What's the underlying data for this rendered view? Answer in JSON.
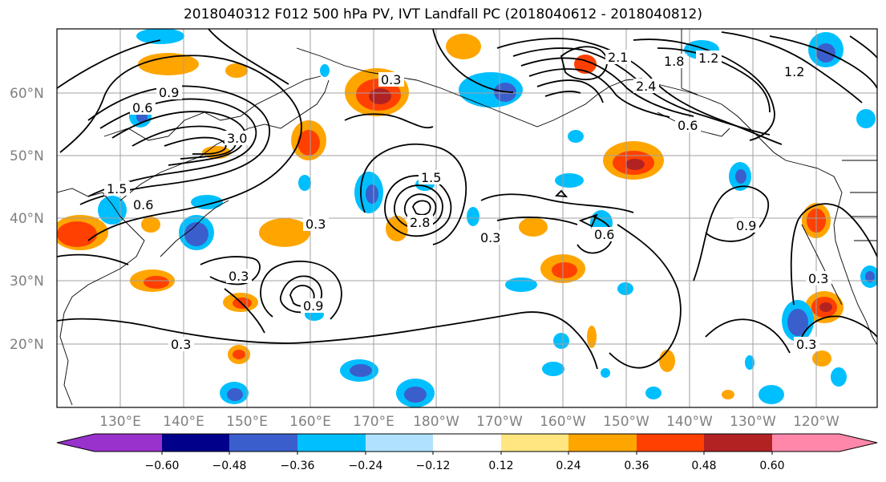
{
  "title": "2018040312 F012 500 hPa PV, IVT Landfall PC (2018040612 - 2018040812)",
  "lat_labels": [
    "60°N",
    "50°N",
    "40°N",
    "30°N",
    "20°N"
  ],
  "lon_labels": [
    "130°E",
    "140°E",
    "150°E",
    "160°E",
    "170°E",
    "180°W",
    "170°W",
    "160°W",
    "150°W",
    "140°W",
    "130°W",
    "120°W"
  ],
  "contour_labels": [
    "0.9",
    "1.5",
    "0.6",
    "3.0",
    "0.3",
    "0.3",
    "1.5",
    "2.8",
    "0.3",
    "0.6",
    "0.9",
    "0.9",
    "0.3",
    "2.1",
    "1.8",
    "1.2",
    "1.2",
    "0.6",
    "2.4",
    "0.6",
    "0.3",
    "0.3",
    "0.3"
  ],
  "colorbar": {
    "ticks": [
      "−0.60",
      "−0.48",
      "−0.36",
      "−0.24",
      "−0.12",
      "0.12",
      "0.24",
      "0.36",
      "0.48",
      "0.60"
    ],
    "colors": [
      "#9932cc",
      "#00008b",
      "#3a5fcd",
      "#00bfff",
      "#b0e2ff",
      "#ffffff",
      "#ffe680",
      "#ffa500",
      "#ff4000",
      "#b22222",
      "#ff88aa"
    ]
  }
}
